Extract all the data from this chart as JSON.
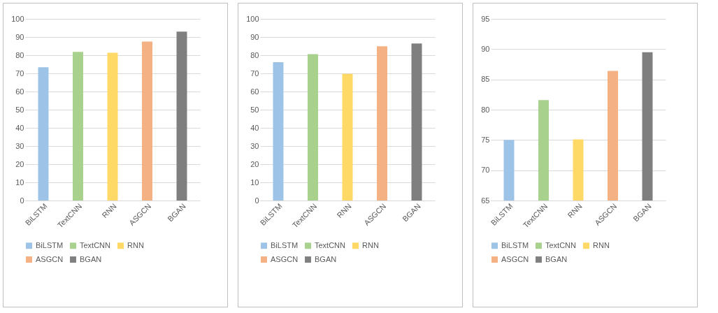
{
  "chart_data": [
    {
      "type": "bar",
      "categories": [
        "BiLSTM",
        "TextCNN",
        "RNN",
        "ASGCN",
        "BGAN"
      ],
      "series": [
        {
          "name": "BiLSTM",
          "color": "#9dc3e6",
          "values": [
            73.4,
            null,
            null,
            null,
            null
          ]
        },
        {
          "name": "TextCNN",
          "color": "#a9d18e",
          "values": [
            null,
            81.8,
            null,
            null,
            null
          ]
        },
        {
          "name": "RNN",
          "color": "#ffd966",
          "values": [
            null,
            null,
            81.3,
            null,
            null
          ]
        },
        {
          "name": "ASGCN",
          "color": "#f4b183",
          "values": [
            null,
            null,
            null,
            87.5,
            null
          ]
        },
        {
          "name": "BGAN",
          "color": "#7f7f7f",
          "values": [
            null,
            null,
            null,
            null,
            93
          ]
        }
      ],
      "ylim": [
        0,
        100
      ],
      "yticks": [
        0,
        10,
        20,
        30,
        40,
        50,
        60,
        70,
        80,
        90,
        100
      ],
      "grid": "y",
      "legend": "bottom"
    },
    {
      "type": "bar",
      "categories": [
        "BiLSTM",
        "TextCNN",
        "RNN",
        "ASGCN",
        "BGAN"
      ],
      "series": [
        {
          "name": "BiLSTM",
          "color": "#9dc3e6",
          "values": [
            76.2,
            null,
            null,
            null,
            null
          ]
        },
        {
          "name": "TextCNN",
          "color": "#a9d18e",
          "values": [
            null,
            80.6,
            null,
            null,
            null
          ]
        },
        {
          "name": "RNN",
          "color": "#ffd966",
          "values": [
            null,
            null,
            69.7,
            null,
            null
          ]
        },
        {
          "name": "ASGCN",
          "color": "#f4b183",
          "values": [
            null,
            null,
            null,
            84.9,
            null
          ]
        },
        {
          "name": "BGAN",
          "color": "#7f7f7f",
          "values": [
            null,
            null,
            null,
            null,
            86.4
          ]
        }
      ],
      "ylim": [
        0,
        100
      ],
      "yticks": [
        0,
        10,
        20,
        30,
        40,
        50,
        60,
        70,
        80,
        90,
        100
      ],
      "grid": "y",
      "legend": "bottom"
    },
    {
      "type": "bar",
      "categories": [
        "BiLSTM",
        "TextCNN",
        "RNN",
        "ASGCN",
        "BGAN"
      ],
      "series": [
        {
          "name": "BiLSTM",
          "color": "#9dc3e6",
          "values": [
            75.0,
            null,
            null,
            null,
            null
          ]
        },
        {
          "name": "TextCNN",
          "color": "#a9d18e",
          "values": [
            null,
            81.6,
            null,
            null,
            null
          ]
        },
        {
          "name": "RNN",
          "color": "#ffd966",
          "values": [
            null,
            null,
            75.1,
            null,
            null
          ]
        },
        {
          "name": "ASGCN",
          "color": "#f4b183",
          "values": [
            null,
            null,
            null,
            86.4,
            null
          ]
        },
        {
          "name": "BGAN",
          "color": "#7f7f7f",
          "values": [
            null,
            null,
            null,
            null,
            89.5
          ]
        }
      ],
      "ylim": [
        65,
        95
      ],
      "yticks": [
        65,
        70,
        75,
        80,
        85,
        90,
        95
      ],
      "grid": "y",
      "legend": "bottom"
    }
  ]
}
